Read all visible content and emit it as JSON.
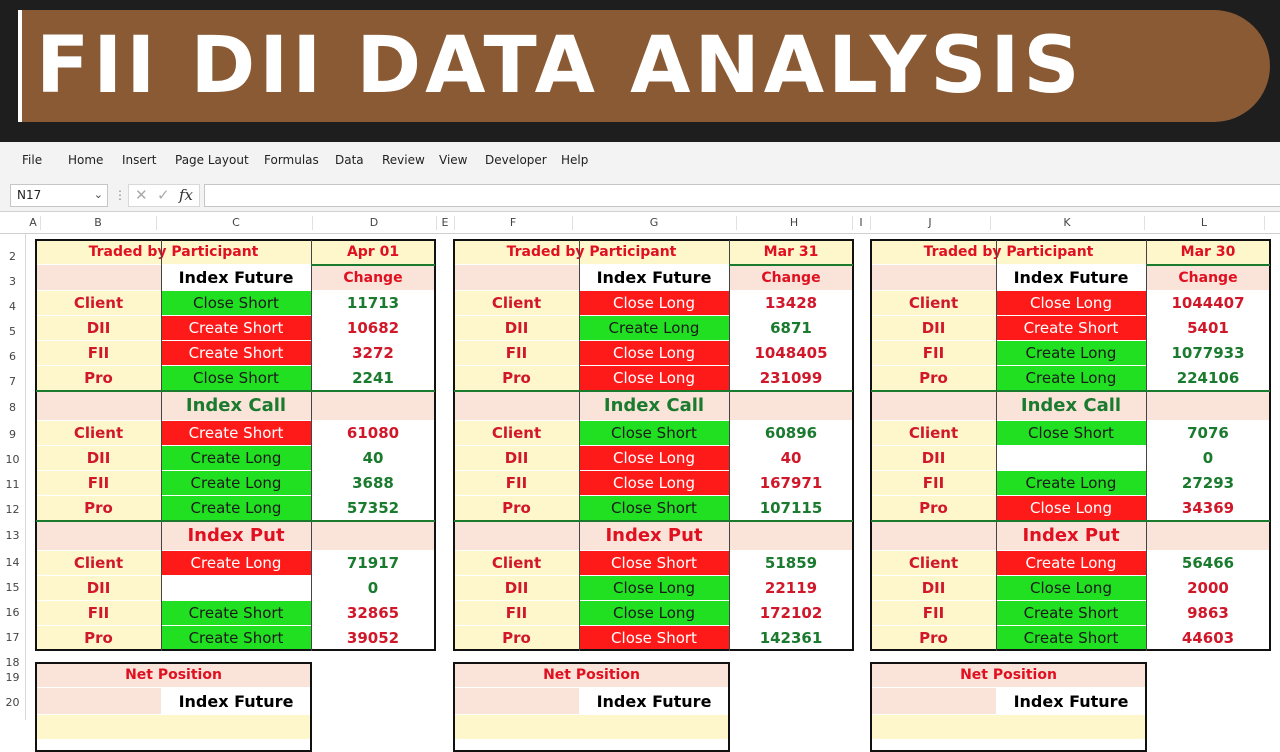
{
  "banner": {
    "title": "FII DII DATA ANALYSIS",
    "bg_color": "#8a5a34"
  },
  "menu": [
    "File",
    "Home",
    "Insert",
    "Page Layout",
    "Formulas",
    "Data",
    "Review",
    "View",
    "Developer",
    "Help"
  ],
  "formula_bar": {
    "name_box": "N17",
    "fx": "fx",
    "cancel": "✕",
    "enter": "✓"
  },
  "columns": [
    "A",
    "B",
    "C",
    "D",
    "E",
    "F",
    "G",
    "H",
    "I",
    "J",
    "K",
    "L"
  ],
  "rows": [
    "2",
    "3",
    "4",
    "5",
    "6",
    "7",
    "8",
    "9",
    "10",
    "11",
    "12",
    "13",
    "14",
    "15",
    "16",
    "17",
    "18",
    "19",
    "20"
  ],
  "colors": {
    "green": "#21e021",
    "red": "#ff1a1a",
    "yellow": "#fff7cc",
    "peach": "#fae3d9"
  },
  "panels": [
    {
      "header": "Traded by Participant",
      "date": "Apr 01",
      "sections": [
        {
          "title": "Index Future",
          "change": "Change",
          "rows": [
            {
              "p": "Client",
              "a": "Close Short",
              "c": "green",
              "v": "11713",
              "vc": "grn"
            },
            {
              "p": "DII",
              "a": "Create Short",
              "c": "red",
              "v": "10682",
              "vc": "red"
            },
            {
              "p": "FII",
              "a": "Create Short",
              "c": "red",
              "v": "3272",
              "vc": "red"
            },
            {
              "p": "Pro",
              "a": "Close Short",
              "c": "green",
              "v": "2241",
              "vc": "grn"
            }
          ]
        },
        {
          "title": "Index Call",
          "change": "",
          "rows": [
            {
              "p": "Client",
              "a": "Create Short",
              "c": "red",
              "v": "61080",
              "vc": "red"
            },
            {
              "p": "DII",
              "a": "Create Long",
              "c": "green",
              "v": "40",
              "vc": "grn"
            },
            {
              "p": "FII",
              "a": "Create Long",
              "c": "green",
              "v": "3688",
              "vc": "grn"
            },
            {
              "p": "Pro",
              "a": "Create Long",
              "c": "green",
              "v": "57352",
              "vc": "grn"
            }
          ]
        },
        {
          "title": "Index Put",
          "change": "",
          "rows": [
            {
              "p": "Client",
              "a": "Create Long",
              "c": "red",
              "v": "71917",
              "vc": "grn"
            },
            {
              "p": "DII",
              "a": "",
              "c": "white",
              "v": "0",
              "vc": "grn"
            },
            {
              "p": "FII",
              "a": "Create Short",
              "c": "green",
              "v": "32865",
              "vc": "red"
            },
            {
              "p": "Pro",
              "a": "Create Short",
              "c": "green",
              "v": "39052",
              "vc": "red"
            }
          ]
        }
      ],
      "net": {
        "title": "Net Position",
        "sub": "Index Future"
      }
    },
    {
      "header": "Traded by Participant",
      "date": "Mar 31",
      "sections": [
        {
          "title": "Index Future",
          "change": "Change",
          "rows": [
            {
              "p": "Client",
              "a": "Close Long",
              "c": "red",
              "v": "13428",
              "vc": "red"
            },
            {
              "p": "DII",
              "a": "Create Long",
              "c": "green",
              "v": "6871",
              "vc": "grn"
            },
            {
              "p": "FII",
              "a": "Close Long",
              "c": "red",
              "v": "1048405",
              "vc": "red"
            },
            {
              "p": "Pro",
              "a": "Close Long",
              "c": "red",
              "v": "231099",
              "vc": "red"
            }
          ]
        },
        {
          "title": "Index Call",
          "change": "",
          "rows": [
            {
              "p": "Client",
              "a": "Close Short",
              "c": "green",
              "v": "60896",
              "vc": "grn"
            },
            {
              "p": "DII",
              "a": "Close Long",
              "c": "red",
              "v": "40",
              "vc": "red"
            },
            {
              "p": "FII",
              "a": "Close Long",
              "c": "red",
              "v": "167971",
              "vc": "red"
            },
            {
              "p": "Pro",
              "a": "Close Short",
              "c": "green",
              "v": "107115",
              "vc": "grn"
            }
          ]
        },
        {
          "title": "Index Put",
          "change": "",
          "rows": [
            {
              "p": "Client",
              "a": "Close Short",
              "c": "red",
              "v": "51859",
              "vc": "grn"
            },
            {
              "p": "DII",
              "a": "Close Long",
              "c": "green",
              "v": "22119",
              "vc": "red"
            },
            {
              "p": "FII",
              "a": "Close Long",
              "c": "green",
              "v": "172102",
              "vc": "red"
            },
            {
              "p": "Pro",
              "a": "Close Short",
              "c": "red",
              "v": "142361",
              "vc": "grn"
            }
          ]
        }
      ],
      "net": {
        "title": "Net Position",
        "sub": "Index Future"
      }
    },
    {
      "header": "Traded by Participant",
      "date": "Mar 30",
      "sections": [
        {
          "title": "Index Future",
          "change": "Change",
          "rows": [
            {
              "p": "Client",
              "a": "Close Long",
              "c": "red",
              "v": "1044407",
              "vc": "red"
            },
            {
              "p": "DII",
              "a": "Create Short",
              "c": "red",
              "v": "5401",
              "vc": "red"
            },
            {
              "p": "FII",
              "a": "Create Long",
              "c": "green",
              "v": "1077933",
              "vc": "grn"
            },
            {
              "p": "Pro",
              "a": "Create Long",
              "c": "green",
              "v": "224106",
              "vc": "grn"
            }
          ]
        },
        {
          "title": "Index Call",
          "change": "",
          "rows": [
            {
              "p": "Client",
              "a": "Close Short",
              "c": "green",
              "v": "7076",
              "vc": "grn"
            },
            {
              "p": "DII",
              "a": "",
              "c": "white",
              "v": "0",
              "vc": "grn"
            },
            {
              "p": "FII",
              "a": "Create Long",
              "c": "green",
              "v": "27293",
              "vc": "grn"
            },
            {
              "p": "Pro",
              "a": "Close Long",
              "c": "red",
              "v": "34369",
              "vc": "red"
            }
          ]
        },
        {
          "title": "Index Put",
          "change": "",
          "rows": [
            {
              "p": "Client",
              "a": "Create Long",
              "c": "red",
              "v": "56466",
              "vc": "grn"
            },
            {
              "p": "DII",
              "a": "Close Long",
              "c": "green",
              "v": "2000",
              "vc": "red"
            },
            {
              "p": "FII",
              "a": "Create Short",
              "c": "green",
              "v": "9863",
              "vc": "red"
            },
            {
              "p": "Pro",
              "a": "Create Short",
              "c": "green",
              "v": "44603",
              "vc": "red"
            }
          ]
        }
      ],
      "net": {
        "title": "Net Position",
        "sub": "Index Future"
      }
    }
  ]
}
